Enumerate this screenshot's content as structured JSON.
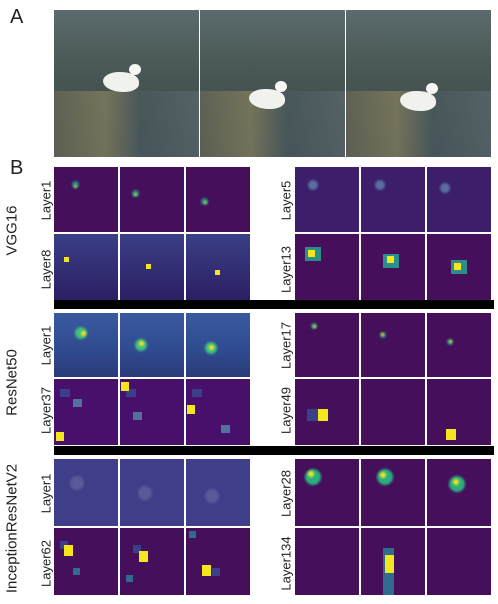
{
  "panel_a": {
    "letter": "A",
    "frames": 3
  },
  "panel_b": {
    "letter": "B",
    "models": [
      {
        "name": "VGG16",
        "left_rows": [
          "Layer1",
          "Layer8"
        ],
        "right_rows": [
          "Layer5",
          "Layer13"
        ]
      },
      {
        "name": "ResNet50",
        "left_rows": [
          "Layer1",
          "Layer37"
        ],
        "right_rows": [
          "Layer17",
          "Layer49"
        ]
      },
      {
        "name": "InceptionResNetV2",
        "left_rows": [
          "Layer1",
          "Layer62"
        ],
        "right_rows": [
          "Layer28",
          "Layer134"
        ]
      }
    ]
  },
  "colors": {
    "viridis_low": "#450f5c",
    "viridis_mid": "#2a8a8a",
    "viridis_high": "#f5e51c",
    "separator": "#000000"
  }
}
